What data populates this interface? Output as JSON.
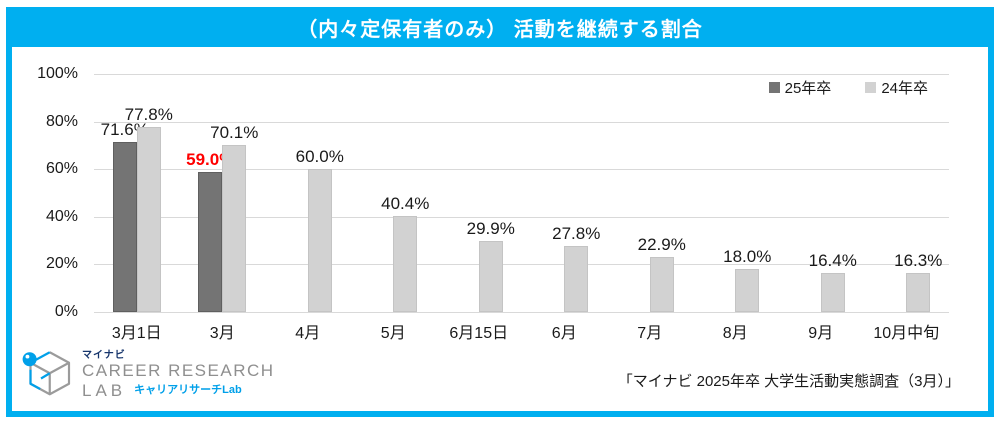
{
  "title": "（内々定保有者のみ） 活動を継続する割合",
  "source": "「マイナビ 2025年卒 大学生活動実態調査（3月）」",
  "logo": {
    "brand": "マイナビ",
    "line1": "CAREER RESEARCH",
    "line2": "LAB",
    "sub": "キャリアリサーチLab"
  },
  "colors": {
    "banner": "#00AFF0",
    "bar_dark": "#747474",
    "bar_light": "#d2d2d2",
    "gridline": "#d9d9d9",
    "highlight_label": "#ff0000",
    "logo_blue": "#00A0E9"
  },
  "chart_data": {
    "type": "bar",
    "title": "（内々定保有者のみ） 活動を継続する割合",
    "categories": [
      "3月1日",
      "3月",
      "4月",
      "5月",
      "6月15日",
      "6月",
      "7月",
      "8月",
      "9月",
      "10月中旬"
    ],
    "series": [
      {
        "name": "25年卒",
        "color": "#747474",
        "values": [
          71.6,
          59.0,
          null,
          null,
          null,
          null,
          null,
          null,
          null,
          null
        ]
      },
      {
        "name": "24年卒",
        "color": "#d2d2d2",
        "values": [
          77.8,
          70.1,
          60.0,
          40.4,
          29.9,
          27.8,
          22.9,
          18.0,
          16.4,
          16.3
        ]
      }
    ],
    "highlight": {
      "series": 0,
      "index": 1,
      "color": "#ff0000"
    },
    "y_ticks": [
      "0%",
      "20%",
      "40%",
      "60%",
      "80%",
      "100%"
    ],
    "ylim": [
      0,
      100
    ],
    "grid": true,
    "legend_position": "top-right",
    "value_label_format": "percent_one_decimal"
  }
}
